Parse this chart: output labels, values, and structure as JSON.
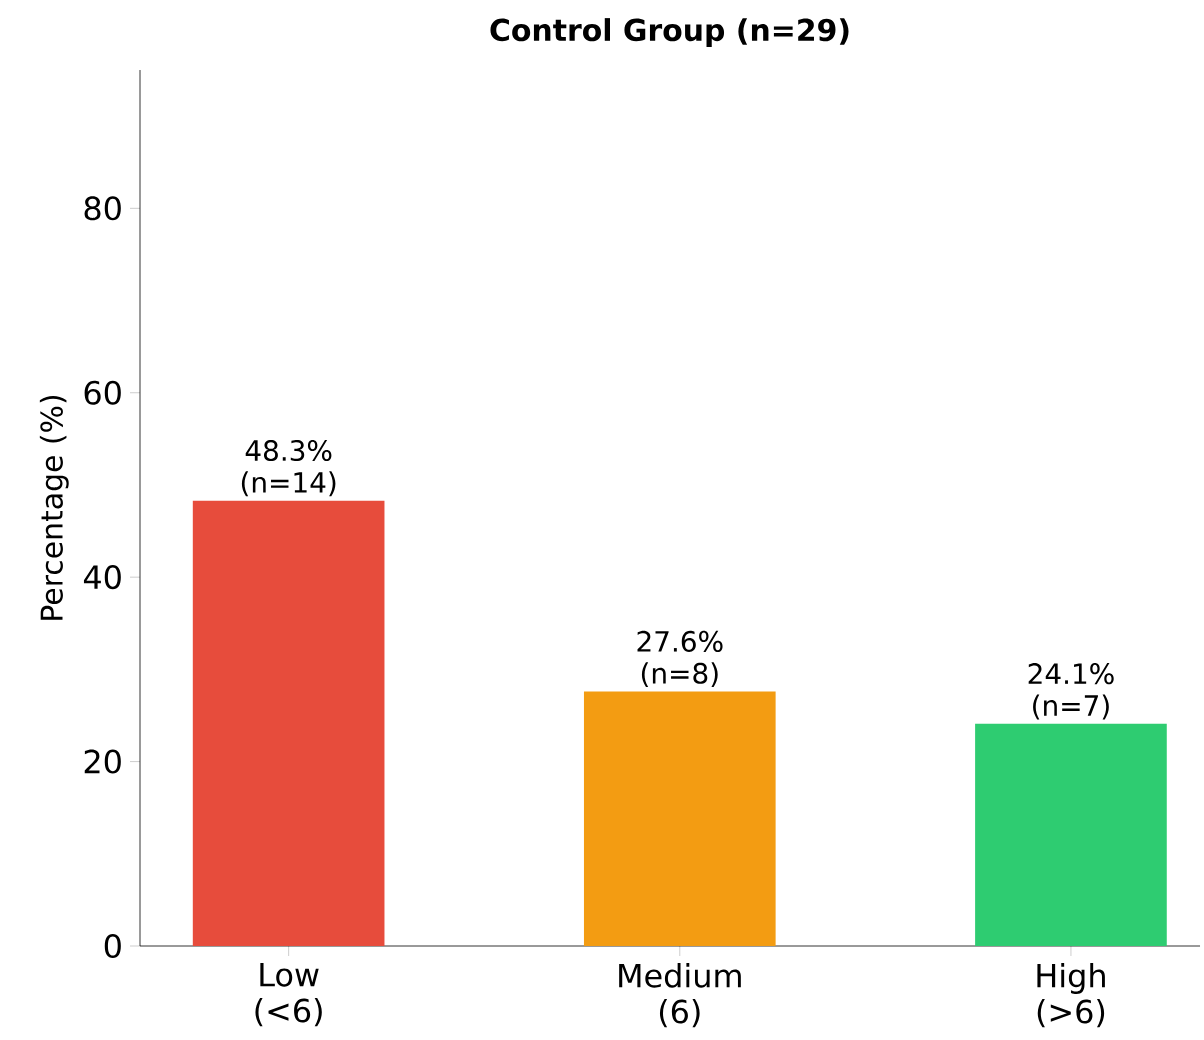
{
  "chart_data": {
    "type": "bar",
    "title": "Control Group (n=29)",
    "ylabel": "Percentage (%)",
    "categories": [
      "Low (<6)",
      "Medium (6)",
      "High (>6)"
    ],
    "values": [
      48.3,
      27.6,
      24.1
    ],
    "colors": [
      "#e74c3c",
      "#f39c12",
      "#2ecc71"
    ],
    "value_labels": [
      "48.3% (n=14)",
      "27.6% (n=8)",
      "24.1% (n=7)"
    ],
    "ylim": [
      0,
      95
    ],
    "yticks": [
      0,
      20,
      40,
      60,
      80
    ]
  }
}
